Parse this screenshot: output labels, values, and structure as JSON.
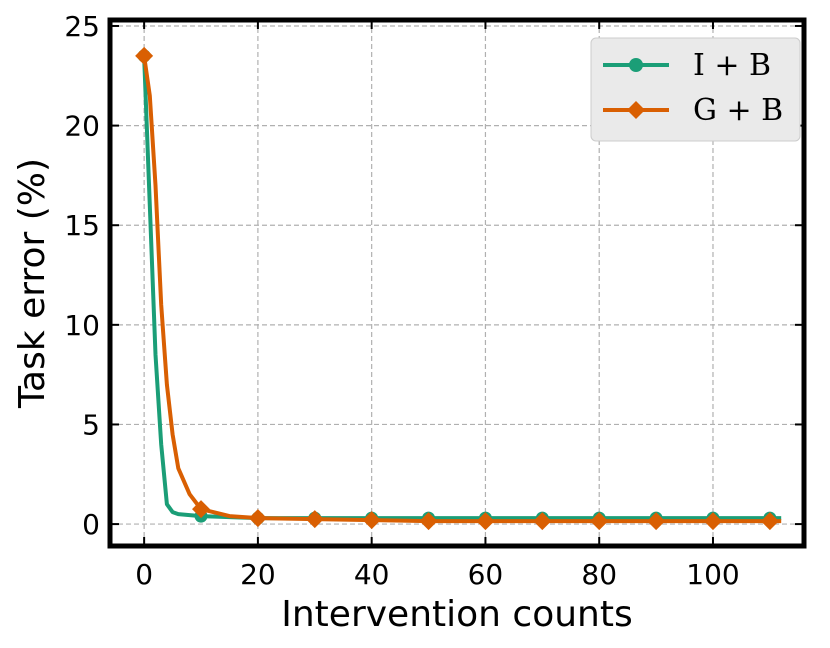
{
  "chart_data": {
    "type": "line",
    "xlabel": "Intervention counts",
    "ylabel": "Task error (%)",
    "xlim": [
      -6,
      116
    ],
    "ylim": [
      -1.1,
      25.3
    ],
    "xticks": [
      0,
      20,
      40,
      60,
      80,
      100
    ],
    "yticks": [
      0,
      5,
      10,
      15,
      20,
      25
    ],
    "grid": true,
    "legend_position": "top-right",
    "series": [
      {
        "name": "I + B",
        "color": "#1b9e77",
        "marker": "circle",
        "x": [
          0,
          1,
          2,
          3,
          4,
          5,
          6,
          8,
          10,
          15,
          20,
          30,
          40,
          50,
          60,
          70,
          80,
          90,
          100,
          110,
          112
        ],
        "y": [
          23.5,
          16.0,
          8.5,
          4.0,
          1.0,
          0.6,
          0.5,
          0.45,
          0.4,
          0.35,
          0.3,
          0.3,
          0.3,
          0.3,
          0.3,
          0.3,
          0.3,
          0.3,
          0.3,
          0.3,
          0.3
        ],
        "marker_x": [
          0,
          10,
          20,
          30,
          40,
          50,
          60,
          70,
          80,
          90,
          100,
          110
        ],
        "marker_y": [
          23.5,
          0.4,
          0.3,
          0.3,
          0.3,
          0.3,
          0.3,
          0.3,
          0.3,
          0.3,
          0.3,
          0.3
        ]
      },
      {
        "name": "G + B",
        "color": "#d95f02",
        "marker": "diamond",
        "x": [
          0,
          1,
          2,
          3,
          4,
          5,
          6,
          8,
          10,
          15,
          20,
          30,
          40,
          50,
          60,
          70,
          80,
          90,
          100,
          110,
          112
        ],
        "y": [
          23.5,
          21.5,
          17.0,
          11.0,
          7.0,
          4.5,
          2.8,
          1.5,
          0.75,
          0.4,
          0.3,
          0.25,
          0.2,
          0.15,
          0.15,
          0.15,
          0.15,
          0.15,
          0.15,
          0.15,
          0.15
        ],
        "marker_x": [
          0,
          10,
          20,
          30,
          40,
          50,
          60,
          70,
          80,
          90,
          100,
          110
        ],
        "marker_y": [
          23.5,
          0.75,
          0.3,
          0.25,
          0.2,
          0.15,
          0.15,
          0.15,
          0.15,
          0.15,
          0.15,
          0.15
        ]
      }
    ]
  }
}
